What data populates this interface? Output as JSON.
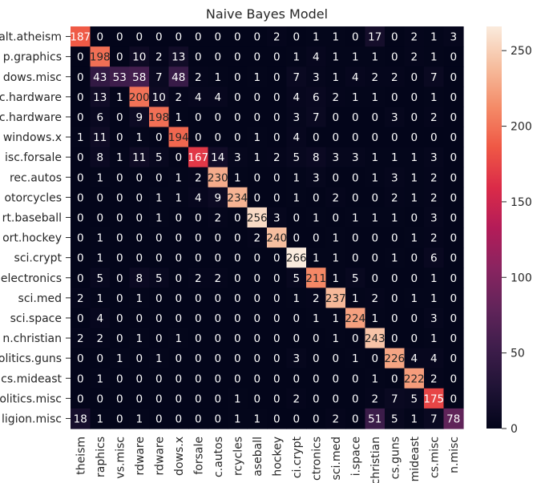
{
  "chart_data": {
    "type": "heatmap",
    "title": "Naive Bayes Model",
    "xlabel": "",
    "ylabel": "",
    "row_labels": [
      "alt.atheism",
      "comp.graphics",
      "comp.os.ms-windows.misc",
      "comp.sys.ibm.pc.hardware",
      "comp.sys.mac.hardware",
      "comp.windows.x",
      "misc.forsale",
      "rec.autos",
      "rec.motorcycles",
      "rec.sport.baseball",
      "rec.sport.hockey",
      "sci.crypt",
      "sci.electronics",
      "sci.med",
      "sci.space",
      "soc.religion.christian",
      "talk.politics.guns",
      "talk.politics.mideast",
      "talk.politics.misc",
      "talk.religion.misc"
    ],
    "row_tick_text": [
      "alt.atheism",
      "p.graphics",
      "dows.misc",
      "c.hardware",
      "c.hardware",
      "windows.x",
      "isc.forsale",
      "rec.autos",
      "otorcycles",
      "rt.baseball",
      "ort.hockey",
      "sci.crypt",
      "electronics",
      "sci.med",
      "sci.space",
      "n.christian",
      "olitics.guns",
      "cs.mideast",
      "olitics.misc",
      "ligion.misc"
    ],
    "col_tick_text": [
      "theism",
      "raphics",
      "vs.misc",
      "rdware",
      "rdware",
      "dows.x",
      "forsale",
      "c.autos",
      "rcycles",
      "aseball",
      "hockey",
      "ci.crypt",
      "ctronics",
      "sci.med",
      "i.space",
      "christian",
      "cs.guns",
      "mideast",
      "cs.misc",
      "n.misc"
    ],
    "values": [
      [
        187,
        0,
        0,
        0,
        0,
        0,
        0,
        0,
        0,
        0,
        2,
        0,
        1,
        1,
        0,
        17,
        0,
        2,
        1,
        3
      ],
      [
        0,
        198,
        0,
        10,
        2,
        13,
        0,
        0,
        0,
        0,
        0,
        1,
        4,
        1,
        1,
        1,
        0,
        2,
        1,
        0
      ],
      [
        0,
        43,
        53,
        58,
        7,
        48,
        2,
        1,
        0,
        1,
        0,
        7,
        3,
        1,
        4,
        2,
        2,
        0,
        7,
        0
      ],
      [
        0,
        13,
        1,
        200,
        10,
        2,
        4,
        4,
        0,
        0,
        0,
        4,
        6,
        2,
        1,
        1,
        0,
        0,
        1,
        0
      ],
      [
        0,
        6,
        0,
        9,
        198,
        1,
        0,
        0,
        0,
        0,
        0,
        3,
        7,
        0,
        0,
        0,
        3,
        0,
        2,
        0
      ],
      [
        1,
        11,
        0,
        1,
        0,
        194,
        0,
        0,
        0,
        1,
        0,
        4,
        0,
        0,
        0,
        0,
        0,
        0,
        0,
        0
      ],
      [
        0,
        8,
        1,
        11,
        5,
        0,
        167,
        14,
        3,
        1,
        2,
        5,
        8,
        3,
        3,
        1,
        1,
        1,
        3,
        0
      ],
      [
        0,
        1,
        0,
        0,
        0,
        1,
        2,
        230,
        1,
        0,
        0,
        1,
        3,
        0,
        0,
        1,
        3,
        1,
        2,
        0
      ],
      [
        0,
        0,
        0,
        0,
        1,
        1,
        4,
        9,
        234,
        0,
        0,
        1,
        0,
        2,
        0,
        0,
        2,
        1,
        2,
        0
      ],
      [
        0,
        0,
        0,
        0,
        1,
        0,
        0,
        2,
        0,
        256,
        3,
        0,
        1,
        0,
        1,
        1,
        1,
        0,
        3,
        0
      ],
      [
        0,
        1,
        0,
        0,
        0,
        0,
        0,
        0,
        0,
        2,
        240,
        0,
        0,
        1,
        0,
        0,
        0,
        1,
        2,
        0
      ],
      [
        0,
        1,
        0,
        0,
        0,
        0,
        0,
        0,
        0,
        0,
        0,
        266,
        1,
        1,
        0,
        0,
        1,
        0,
        6,
        0
      ],
      [
        0,
        5,
        0,
        8,
        5,
        0,
        2,
        2,
        0,
        0,
        0,
        5,
        211,
        1,
        5,
        0,
        0,
        0,
        1,
        0
      ],
      [
        2,
        1,
        0,
        1,
        0,
        0,
        0,
        0,
        0,
        0,
        0,
        1,
        2,
        237,
        1,
        2,
        0,
        1,
        1,
        0
      ],
      [
        0,
        4,
        0,
        0,
        0,
        0,
        0,
        0,
        0,
        0,
        0,
        0,
        1,
        1,
        224,
        1,
        0,
        0,
        3,
        0
      ],
      [
        2,
        2,
        0,
        1,
        0,
        1,
        0,
        0,
        0,
        0,
        0,
        0,
        0,
        1,
        0,
        243,
        0,
        0,
        1,
        0
      ],
      [
        0,
        0,
        1,
        0,
        1,
        0,
        0,
        0,
        0,
        0,
        0,
        3,
        0,
        0,
        1,
        0,
        226,
        4,
        4,
        0
      ],
      [
        0,
        1,
        0,
        0,
        0,
        0,
        0,
        0,
        0,
        0,
        0,
        0,
        0,
        0,
        0,
        1,
        0,
        222,
        2,
        0
      ],
      [
        0,
        0,
        0,
        0,
        0,
        0,
        0,
        0,
        1,
        0,
        0,
        2,
        0,
        0,
        0,
        2,
        7,
        5,
        175,
        0
      ],
      [
        18,
        1,
        0,
        1,
        0,
        0,
        0,
        0,
        1,
        1,
        0,
        0,
        0,
        2,
        0,
        51,
        5,
        1,
        7,
        78
      ]
    ],
    "colorbar": {
      "min": 0,
      "max": 266,
      "ticks": [
        0,
        50,
        100,
        150,
        200,
        250
      ]
    },
    "colormap": "rocket",
    "colors": {
      "low": "#03051a",
      "high": "#faebdd",
      "text_dark": "#262626",
      "text_light": "#ffffff"
    }
  }
}
